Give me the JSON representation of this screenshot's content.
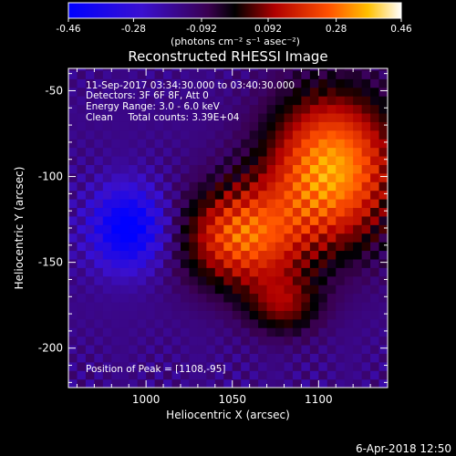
{
  "chart_data": {
    "type": "heatmap",
    "title": "Reconstructed RHESSI Image",
    "xlabel": "Heliocentric X (arcsec)",
    "ylabel": "Heliocentric Y (arcsec)",
    "xlim": [
      955,
      1140
    ],
    "ylim": [
      -223,
      -37
    ],
    "x_ticks": [
      1000,
      1050,
      1100
    ],
    "y_ticks": [
      -50,
      -100,
      -150,
      -200
    ],
    "info_lines": [
      "11-Sep-2017 03:34:30.000 to 03:40:30.000",
      "Detectors: 3F 6F 8F, Att 0",
      "Energy Range: 3.0 - 6.0 keV",
      "Clean     Total counts: 3.39E+04"
    ],
    "peak_label": "Position of Peak = [1108,-95]",
    "peak_position": [
      1108,
      -95
    ],
    "colorbar": {
      "min": -0.46,
      "max": 0.46,
      "ticks": [
        "-0.46",
        "-0.28",
        "-0.092",
        "0.092",
        "0.28",
        "0.46"
      ],
      "unit_label": "(photons cm⁻² s⁻¹ asec⁻²)",
      "colors": {
        "low": "#0000ff",
        "mid": "#000000",
        "high": "#ffffff"
      }
    },
    "grid": false,
    "image_description_note": "",
    "timestamp": "6-Apr-2018 12:50"
  }
}
